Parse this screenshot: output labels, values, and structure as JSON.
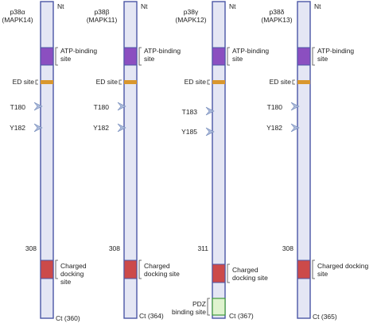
{
  "diagram": {
    "proteins": [
      {
        "name": "p38α",
        "gene": "(MAPK14)",
        "n_term": "Nt",
        "c_term": "Ct (360)",
        "residues": [
          "T180",
          "Y182"
        ],
        "position_marker": "308",
        "domains": {
          "atp_binding": "ATP-binding site",
          "ed_site": "ED site",
          "charged_docking": "Charged docking site"
        }
      },
      {
        "name": "p38β",
        "gene": "(MAPK11)",
        "n_term": "Nt",
        "c_term": "Ct (364)",
        "residues": [
          "T180",
          "Y182"
        ],
        "position_marker": "308",
        "domains": {
          "atp_binding": "ATP-binding site",
          "ed_site": "ED site",
          "charged_docking": "Charged docking site"
        }
      },
      {
        "name": "p38γ",
        "gene": "(MAPK12)",
        "n_term": "Nt",
        "c_term": "Ct (367)",
        "residues": [
          "T183",
          "Y185"
        ],
        "position_marker": "311",
        "domains": {
          "atp_binding": "ATP-binding site",
          "ed_site": "ED site",
          "charged_docking": "Charged docking site",
          "pdz_binding": "PDZ binding site"
        }
      },
      {
        "name": "p38δ",
        "gene": "(MAPK13)",
        "n_term": "Nt",
        "c_term": "Ct (365)",
        "residues": [
          "T180",
          "Y182"
        ],
        "position_marker": "308",
        "domains": {
          "atp_binding": "ATP-binding site",
          "ed_site": "ED site",
          "charged_docking": "Charged docking site"
        }
      }
    ],
    "colors": {
      "bar_fill": "#e4e6f4",
      "bar_stroke": "#4a56a6",
      "atp_binding": "#8b4fc0",
      "ed_site": "#d9972e",
      "charged_docking": "#cc4a4a",
      "pdz_binding": "#dff3cf",
      "pdz_stroke": "#3e9a3a",
      "residue_marker": "#aab9d9"
    }
  }
}
